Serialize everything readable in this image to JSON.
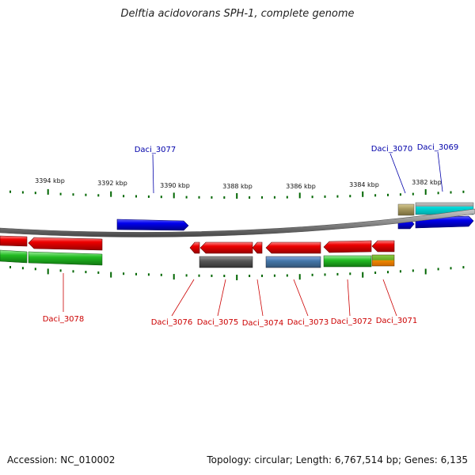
{
  "title": "Delftia acidovorans SPH-1, complete genome",
  "footer": {
    "accession": "Accession: NC_010002",
    "topology": "Topology: circular; Length: 6,767,514 bp; Genes: 6,135"
  },
  "scale_labels": [
    "3394 kbp",
    "3392 kbp",
    "3390 kbp",
    "3388 kbp",
    "3386 kbp",
    "3384 kbp",
    "3382 kbp"
  ],
  "colors": {
    "forward_label": "#0000aa",
    "reverse_label": "#cc0000",
    "gene_red": "#ee0000",
    "gene_blue": "#0000ee",
    "cog_green": "#22bb22",
    "cog_gray": "#555555",
    "cog_steel": "#4477aa",
    "cog_orange": "#ee8800",
    "cog_khaki": "#a89a60",
    "cog_cyan": "#00dddd",
    "backbone": "#888888",
    "tick": "#006600"
  },
  "genes": {
    "forward": [
      "Daci_3077",
      "Daci_3070",
      "Daci_3069"
    ],
    "reverse": [
      "Daci_3078",
      "Daci_3076",
      "Daci_3075",
      "Daci_3074",
      "Daci_3073",
      "Daci_3072",
      "Daci_3071"
    ]
  }
}
